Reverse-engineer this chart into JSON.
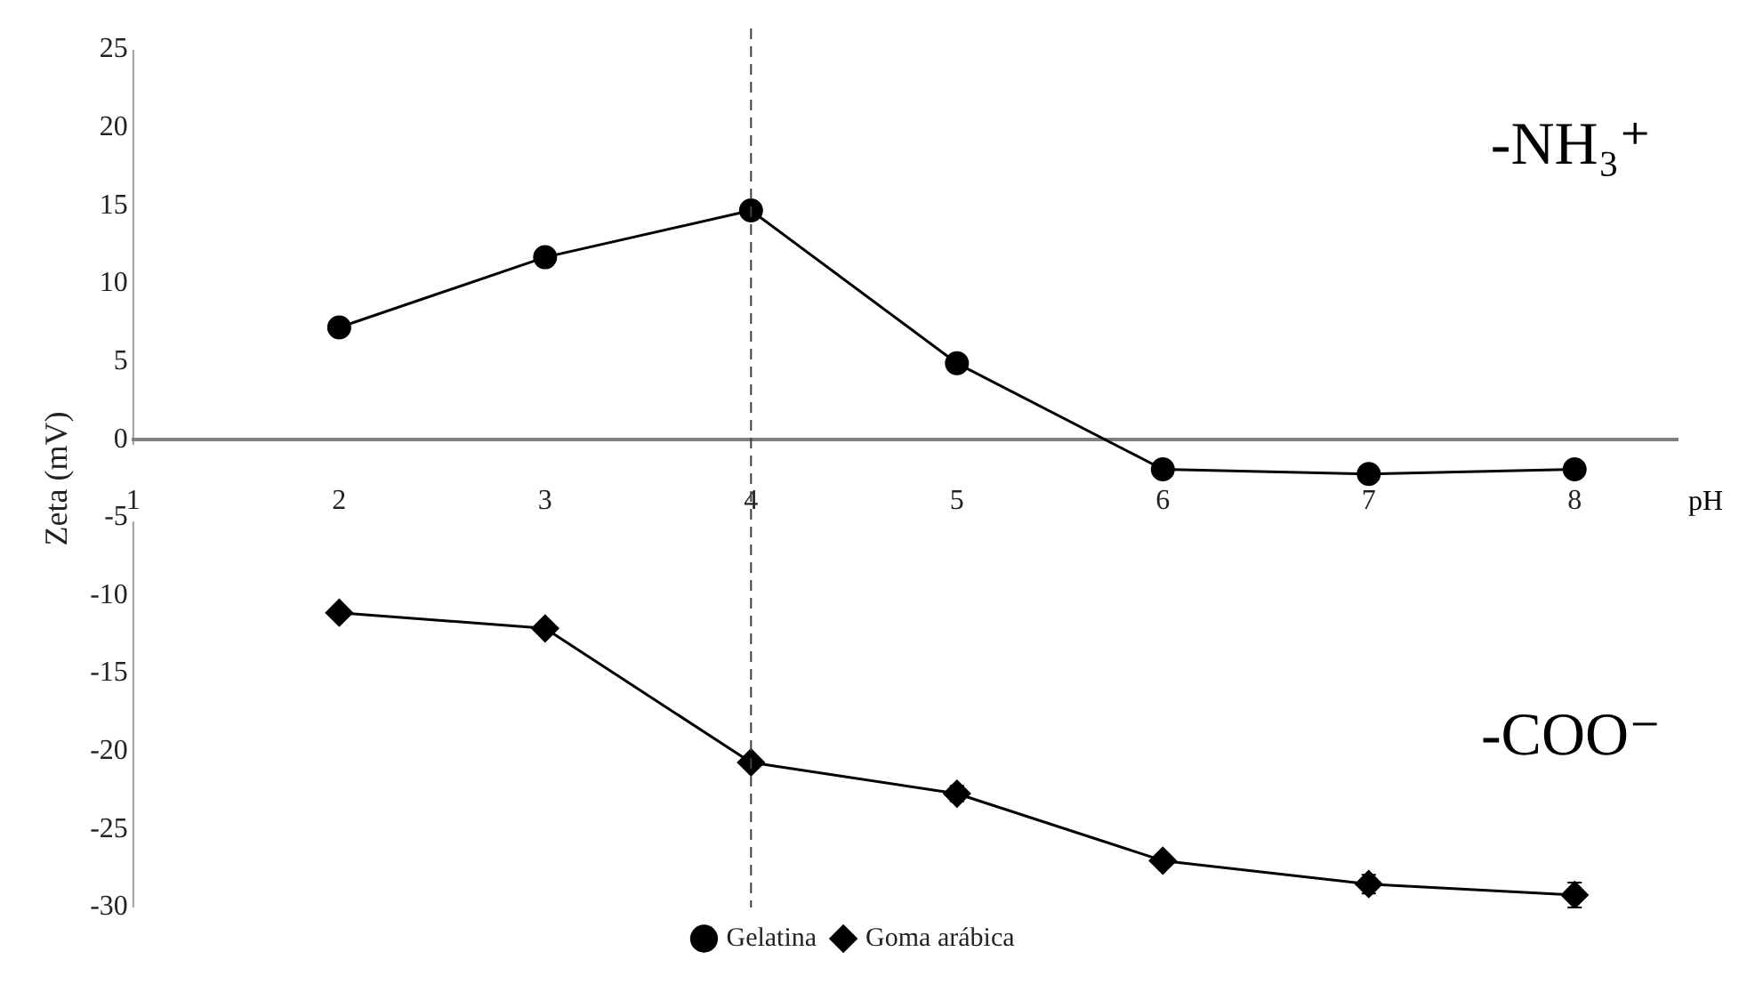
{
  "chart_data": {
    "type": "line",
    "xlabel": "pH",
    "ylabel": "Zeta (mV)",
    "x": [
      2,
      3,
      4,
      5,
      6,
      7,
      8
    ],
    "series": [
      {
        "name": "Gelatina",
        "color": "#000000",
        "marker": "circle",
        "values": [
          7.2,
          11.7,
          14.7,
          4.9,
          -1.9,
          -2.2,
          -1.9
        ]
      },
      {
        "name": "Goma arábica",
        "color": "#000000",
        "marker": "diamond",
        "values": [
          -11.1,
          -12.1,
          -20.7,
          -22.7,
          -27.0,
          -28.5,
          -29.2
        ],
        "errors": [
          null,
          null,
          0.4,
          0.5,
          0.4,
          0.6,
          0.8
        ]
      }
    ],
    "xlim": [
      1,
      8.5
    ],
    "xticks": [
      1,
      2,
      3,
      4,
      5,
      6,
      7,
      8
    ],
    "ylim": [
      -30,
      25
    ],
    "yticks": [
      -30,
      -25,
      -20,
      -15,
      -10,
      -5,
      0,
      5,
      10,
      15,
      20,
      25
    ],
    "grid": false,
    "legend": "bottom",
    "ref_lines": [
      {
        "axis": "x",
        "value": 4,
        "color": "#404040",
        "line_style": "dashed"
      }
    ],
    "annotations": [
      "-NH₃⁺",
      "-COO⁻"
    ]
  }
}
